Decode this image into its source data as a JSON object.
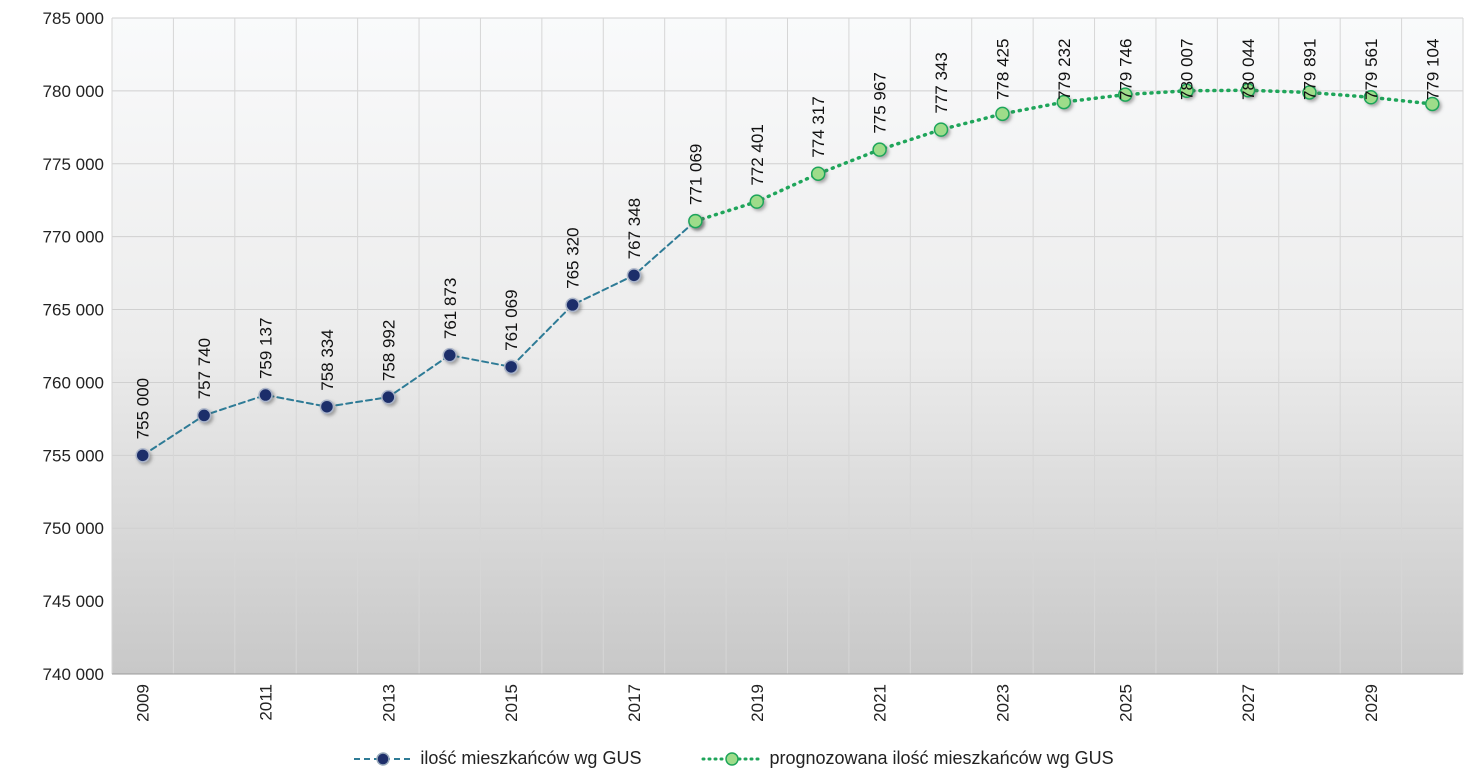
{
  "chart_data": {
    "type": "line",
    "x": [
      2009,
      2010,
      2011,
      2012,
      2013,
      2014,
      2015,
      2016,
      2017,
      2018,
      2019,
      2020,
      2021,
      2022,
      2023,
      2024,
      2025,
      2026,
      2027,
      2028,
      2029,
      2030
    ],
    "x_tick_labels": [
      "2009",
      "2011",
      "2013",
      "2015",
      "2017",
      "2019",
      "2021",
      "2023",
      "2025",
      "2027",
      "2029"
    ],
    "ylim": [
      740000,
      785000
    ],
    "y_tick_labels": [
      "740 000",
      "745 000",
      "750 000",
      "755 000",
      "760 000",
      "765 000",
      "770 000",
      "775 000",
      "780 000",
      "785 000"
    ],
    "grid": true,
    "legend_position": "bottom",
    "series": [
      {
        "name": "ilość mieszkańców wg GUS",
        "color": "#2e7b96",
        "marker_color": "#1f2f6b",
        "style": "dashed",
        "x": [
          2009,
          2010,
          2011,
          2012,
          2013,
          2014,
          2015,
          2016,
          2017,
          2018
        ],
        "values": [
          755000,
          757740,
          759137,
          758334,
          758992,
          761873,
          761069,
          765320,
          767348,
          771069
        ],
        "labels": [
          "755 000",
          "757 740",
          "759 137",
          "758 334",
          "758 992",
          "761 873",
          "761 069",
          "765 320",
          "767 348",
          "771 069"
        ]
      },
      {
        "name": "prognozowana ilość mieszkańców wg GUS",
        "color": "#1fa55a",
        "marker_color": "#9edc8a",
        "style": "dotted",
        "x": [
          2018,
          2019,
          2020,
          2021,
          2022,
          2023,
          2024,
          2025,
          2026,
          2027,
          2028,
          2029,
          2030
        ],
        "values": [
          771069,
          772401,
          774317,
          775967,
          777343,
          778425,
          779232,
          779746,
          780007,
          780044,
          779891,
          779561,
          779104
        ],
        "labels": [
          "",
          "772 401",
          "774 317",
          "775 967",
          "777 343",
          "778 425",
          "779 232",
          "779 746",
          "780 007",
          "780 044",
          "779 891",
          "779 561",
          "779 104"
        ]
      }
    ]
  }
}
